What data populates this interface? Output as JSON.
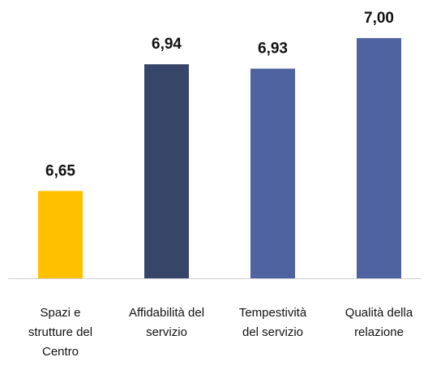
{
  "chart_data": {
    "type": "bar",
    "categories": [
      [
        "Spazi e",
        "strutture del",
        "Centro"
      ],
      [
        "Affidabilità del",
        "servizio"
      ],
      [
        "Tempestività",
        "del servizio"
      ],
      [
        "Qualità della",
        "relazione"
      ]
    ],
    "values": [
      6.65,
      6.94,
      6.93,
      7.0
    ],
    "value_labels": [
      "6,65",
      "6,94",
      "6,93",
      "7,00"
    ],
    "colors": [
      "#ffc000",
      "#374569",
      "#4f63a0",
      "#4f63a0"
    ],
    "ylim": [
      6.45,
      7.05
    ]
  }
}
